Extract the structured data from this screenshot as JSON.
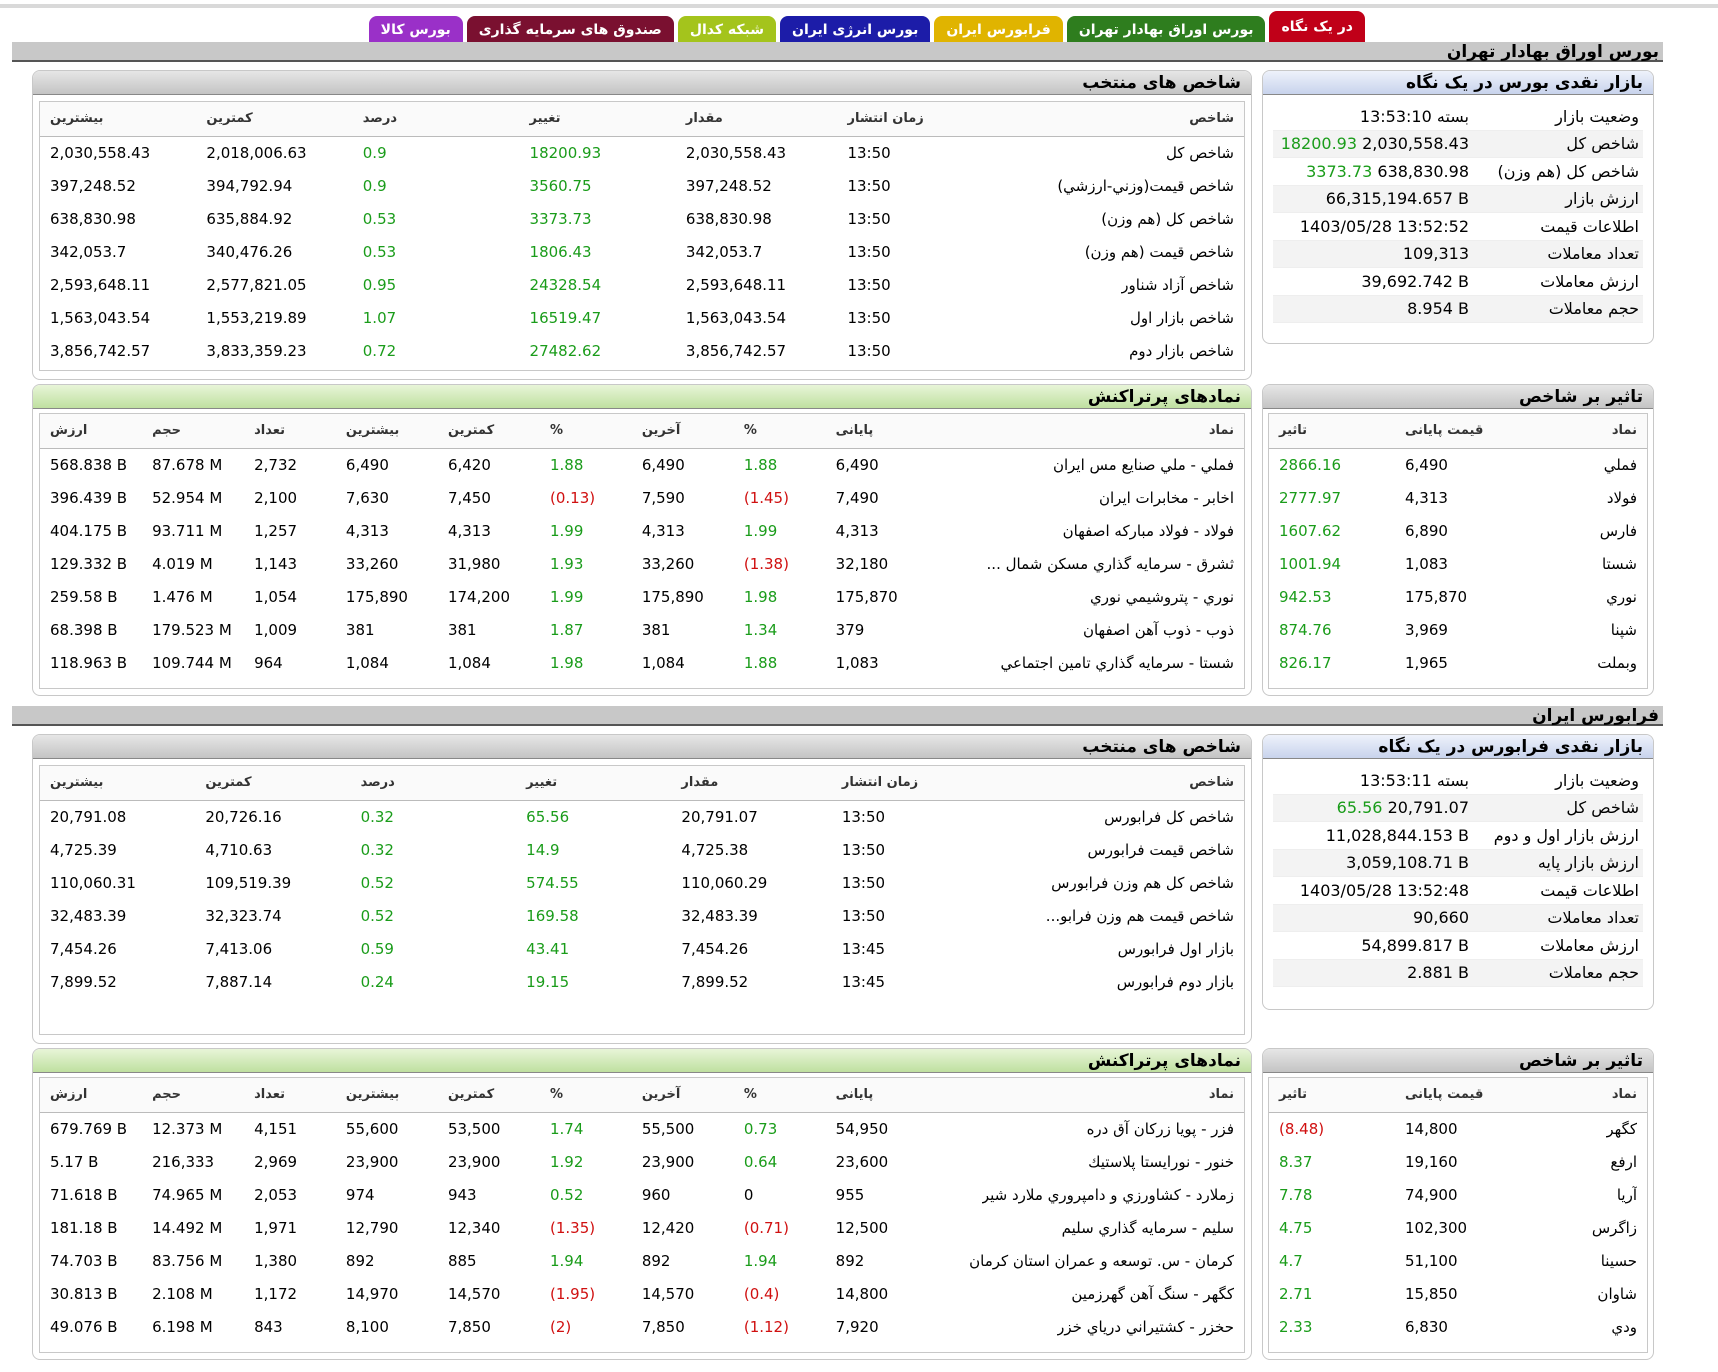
{
  "colors": {
    "tab_red": "#b8001a",
    "tab_green": "#2e7d1e",
    "tab_yellow": "#e6b800",
    "tab_blue": "#1c1ca8",
    "tab_lime": "#a8c81c",
    "tab_maroon": "#7a1030",
    "tab_purple": "#9030c0",
    "positive": "#1a9c1a",
    "negative": "#d01010"
  },
  "tabs": [
    {
      "label": "در یک نگاه",
      "color": "#c00018",
      "active": true
    },
    {
      "label": "بورس اوراق بهادار تهران",
      "color": "#2e7d1e"
    },
    {
      "label": "فرابورس ایران",
      "color": "#e0b400"
    },
    {
      "label": "بورس انرژی ایران",
      "color": "#1c1ca8"
    },
    {
      "label": "شبکه کدال",
      "color": "#a4c41c"
    },
    {
      "label": "صندوق های سرمایه گذاری",
      "color": "#7a1030"
    },
    {
      "label": "بورس کالا",
      "color": "#9a30c8"
    }
  ],
  "tse": {
    "section_title": "بورس اوراق بهادار تهران",
    "summary": {
      "title": "بازار نقدی بورس در یک نگاه",
      "rows": [
        {
          "label": "وضعیت بازار",
          "value": "بسته 13:53:10",
          "change": ""
        },
        {
          "label": "شاخص کل",
          "value": "2,030,558.43",
          "change": "18200.93"
        },
        {
          "label": "شاخص کل (هم وزن)",
          "value": "638,830.98",
          "change": "3373.73"
        },
        {
          "label": "ارزش بازار",
          "value": "66,315,194.657 B",
          "change": ""
        },
        {
          "label": "اطلاعات قیمت",
          "value": "1403/05/28 13:52:52",
          "change": ""
        },
        {
          "label": "تعداد معاملات",
          "value": "109,313",
          "change": ""
        },
        {
          "label": "ارزش معاملات",
          "value": "39,692.742 B",
          "change": ""
        },
        {
          "label": "حجم معاملات",
          "value": "8.954 B",
          "change": ""
        }
      ]
    },
    "indices": {
      "title": "شاخص های منتخب",
      "headers": [
        "شاخص",
        "زمان انتشار",
        "مقدار",
        "تغییر",
        "درصد",
        "کمترین",
        "بیشترین"
      ],
      "rows": [
        [
          "شاخص كل",
          "13:50",
          "2,030,558.43",
          "18200.93",
          "0.9",
          "2,018,006.63",
          "2,030,558.43"
        ],
        [
          "شاخص قيمت(وزني-ارزشي)",
          "13:50",
          "397,248.52",
          "3560.75",
          "0.9",
          "394,792.94",
          "397,248.52"
        ],
        [
          "شاخص كل (هم وزن)",
          "13:50",
          "638,830.98",
          "3373.73",
          "0.53",
          "635,884.92",
          "638,830.98"
        ],
        [
          "شاخص قيمت (هم وزن)",
          "13:50",
          "342,053.7",
          "1806.43",
          "0.53",
          "340,476.26",
          "342,053.7"
        ],
        [
          "شاخص آزاد شناور",
          "13:50",
          "2,593,648.11",
          "24328.54",
          "0.95",
          "2,577,821.05",
          "2,593,648.11"
        ],
        [
          "شاخص بازار اول",
          "13:50",
          "1,563,043.54",
          "16519.47",
          "1.07",
          "1,553,219.89",
          "1,563,043.54"
        ],
        [
          "شاخص بازار دوم",
          "13:50",
          "3,856,742.57",
          "27482.62",
          "0.72",
          "3,833,359.23",
          "3,856,742.57"
        ]
      ]
    },
    "impact": {
      "title": "تاثیر بر شاخص",
      "headers": [
        "نماد",
        "قیمت پایانی",
        "تاثیر"
      ],
      "rows": [
        [
          "فملي",
          "6,490",
          "2866.16"
        ],
        [
          "فولاد",
          "4,313",
          "2777.97"
        ],
        [
          "فارس",
          "6,890",
          "1607.62"
        ],
        [
          "شستا",
          "1,083",
          "1001.94"
        ],
        [
          "نوري",
          "175,870",
          "942.53"
        ],
        [
          "شپنا",
          "3,969",
          "874.76"
        ],
        [
          "وبملت",
          "1,965",
          "826.17"
        ]
      ]
    },
    "active": {
      "title": "نمادهای پرتراکنش",
      "headers": [
        "نماد",
        "پایانی",
        "%",
        "آخرین",
        "%",
        "کمترین",
        "بیشترین",
        "تعداد",
        "حجم",
        "ارزش"
      ],
      "rows": [
        [
          "فملي - ملي صنايع مس ايران",
          "6,490",
          "1.88",
          "6,490",
          "1.88",
          "6,420",
          "6,490",
          "2,732",
          "87.678 M",
          "568.838 B"
        ],
        [
          "اخابر - مخابرات ايران",
          "7,490",
          "(1.45)",
          "7,590",
          "(0.13)",
          "7,450",
          "7,630",
          "2,100",
          "52.954 M",
          "396.439 B"
        ],
        [
          "فولاد - فولاد مباركه اصفهان",
          "4,313",
          "1.99",
          "4,313",
          "1.99",
          "4,313",
          "4,313",
          "1,257",
          "93.711 M",
          "404.175 B"
        ],
        [
          "ثشرق - سرمايه گذاري مسكن شمال ...",
          "32,180",
          "(1.38)",
          "33,260",
          "1.93",
          "31,980",
          "33,260",
          "1,143",
          "4.019 M",
          "129.332 B"
        ],
        [
          "نوري - پتروشيمي نوري",
          "175,870",
          "1.98",
          "175,890",
          "1.99",
          "174,200",
          "175,890",
          "1,054",
          "1.476 M",
          "259.58 B"
        ],
        [
          "ذوب - ذوب آهن اصفهان",
          "379",
          "1.34",
          "381",
          "1.87",
          "381",
          "381",
          "1,009",
          "179.523 M",
          "68.398 B"
        ],
        [
          "شستا - سرمايه گذاري تامين اجتماعي",
          "1,083",
          "1.88",
          "1,084",
          "1.98",
          "1,084",
          "1,084",
          "964",
          "109.744 M",
          "118.963 B"
        ]
      ]
    }
  },
  "ifb": {
    "section_title": "فرابورس ایران",
    "summary": {
      "title": "بازار نقدی فرابورس در یک نگاه",
      "rows": [
        {
          "label": "وضعیت بازار",
          "value": "بسته 13:53:11",
          "change": ""
        },
        {
          "label": "شاخص کل",
          "value": "20,791.07",
          "change": "65.56"
        },
        {
          "label": "ارزش بازار اول و دوم",
          "value": "11,028,844.153 B",
          "change": ""
        },
        {
          "label": "ارزش بازار پایه",
          "value": "3,059,108.71 B",
          "change": ""
        },
        {
          "label": "اطلاعات قیمت",
          "value": "1403/05/28 13:52:48",
          "change": ""
        },
        {
          "label": "تعداد معاملات",
          "value": "90,660",
          "change": ""
        },
        {
          "label": "ارزش معاملات",
          "value": "54,899.817 B",
          "change": ""
        },
        {
          "label": "حجم معاملات",
          "value": "2.881 B",
          "change": ""
        }
      ]
    },
    "indices": {
      "title": "شاخص های منتخب",
      "headers": [
        "شاخص",
        "زمان انتشار",
        "مقدار",
        "تغییر",
        "درصد",
        "کمترین",
        "بیشترین"
      ],
      "rows": [
        [
          "شاخص كل فرابورس",
          "13:50",
          "20,791.07",
          "65.56",
          "0.32",
          "20,726.16",
          "20,791.08"
        ],
        [
          "شاخص قيمت فرابورس",
          "13:50",
          "4,725.38",
          "14.9",
          "0.32",
          "4,710.63",
          "4,725.39"
        ],
        [
          "شاخص كل هم وزن فرابورس",
          "13:50",
          "110,060.29",
          "574.55",
          "0.52",
          "109,519.39",
          "110,060.31"
        ],
        [
          "شاخص قيمت هم وزن فرابو...",
          "13:50",
          "32,483.39",
          "169.58",
          "0.52",
          "32,323.74",
          "32,483.39"
        ],
        [
          "بازار اول فرابورس",
          "13:45",
          "7,454.26",
          "43.41",
          "0.59",
          "7,413.06",
          "7,454.26"
        ],
        [
          "بازار دوم فرابورس",
          "13:45",
          "7,899.52",
          "19.15",
          "0.24",
          "7,887.14",
          "7,899.52"
        ]
      ]
    },
    "impact": {
      "title": "تاثیر بر شاخص",
      "headers": [
        "نماد",
        "قیمت پایانی",
        "تاثیر"
      ],
      "rows": [
        [
          "كگهر",
          "14,800",
          "(8.48)"
        ],
        [
          "ارفع",
          "19,160",
          "8.37"
        ],
        [
          "آريا",
          "74,900",
          "7.78"
        ],
        [
          "زاگرس",
          "102,300",
          "4.75"
        ],
        [
          "حسينا",
          "51,100",
          "4.7"
        ],
        [
          "شاوان",
          "15,850",
          "2.71"
        ],
        [
          "ودي",
          "6,830",
          "2.33"
        ]
      ]
    },
    "active": {
      "title": "نمادهای پرتراکنش",
      "headers": [
        "نماد",
        "پایانی",
        "%",
        "آخرین",
        "%",
        "کمترین",
        "بیشترین",
        "تعداد",
        "حجم",
        "ارزش"
      ],
      "rows": [
        [
          "فزر - پويا زركان آق دره",
          "54,950",
          "0.73",
          "55,500",
          "1.74",
          "53,500",
          "55,600",
          "4,151",
          "12.373 M",
          "679.769 B"
        ],
        [
          "خنور - نورايستا پلاستيك",
          "23,600",
          "0.64",
          "23,900",
          "1.92",
          "23,900",
          "23,900",
          "2,969",
          "216,333",
          "5.17 B"
        ],
        [
          "زملارد - كشاورزي و دامپروري ملارد شير",
          "955",
          "0",
          "960",
          "0.52",
          "943",
          "974",
          "2,053",
          "74.965 M",
          "71.618 B"
        ],
        [
          "سليم - سرمايه گذاري سليم",
          "12,500",
          "(0.71)",
          "12,420",
          "(1.35)",
          "12,340",
          "12,790",
          "1,971",
          "14.492 M",
          "181.18 B"
        ],
        [
          "كرمان - س. توسعه و عمران استان كرمان",
          "892",
          "1.94",
          "892",
          "1.94",
          "885",
          "892",
          "1,380",
          "83.756 M",
          "74.703 B"
        ],
        [
          "كگهر - سنگ آهن گهرزمين",
          "14,800",
          "(0.4)",
          "14,570",
          "(1.95)",
          "14,570",
          "14,970",
          "1,172",
          "2.108 M",
          "30.813 B"
        ],
        [
          "حخزر - كشتيراني درياي خزر",
          "7,920",
          "(1.12)",
          "7,850",
          "(2)",
          "7,850",
          "8,100",
          "843",
          "6.198 M",
          "49.076 B"
        ]
      ]
    }
  }
}
